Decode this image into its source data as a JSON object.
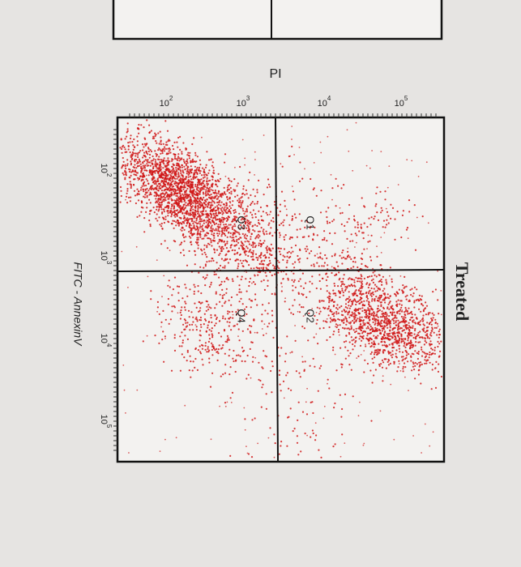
{
  "photo": {
    "top_axis": {
      "label": "PI",
      "ticks": [
        {
          "base": "10",
          "exp": "2"
        },
        {
          "base": "10",
          "exp": "3"
        },
        {
          "base": "10",
          "exp": "4"
        },
        {
          "base": "10",
          "exp": "5"
        }
      ]
    },
    "left_axis": {
      "label": "FITC - AnnexinV",
      "ticks": [
        {
          "base": "10",
          "exp": "2"
        },
        {
          "base": "10",
          "exp": "3"
        },
        {
          "base": "10",
          "exp": "4"
        },
        {
          "base": "10",
          "exp": "5"
        }
      ]
    },
    "panel_title": "Treated",
    "quadrants": [
      "Q1",
      "Q2",
      "Q3",
      "Q4"
    ]
  }
}
